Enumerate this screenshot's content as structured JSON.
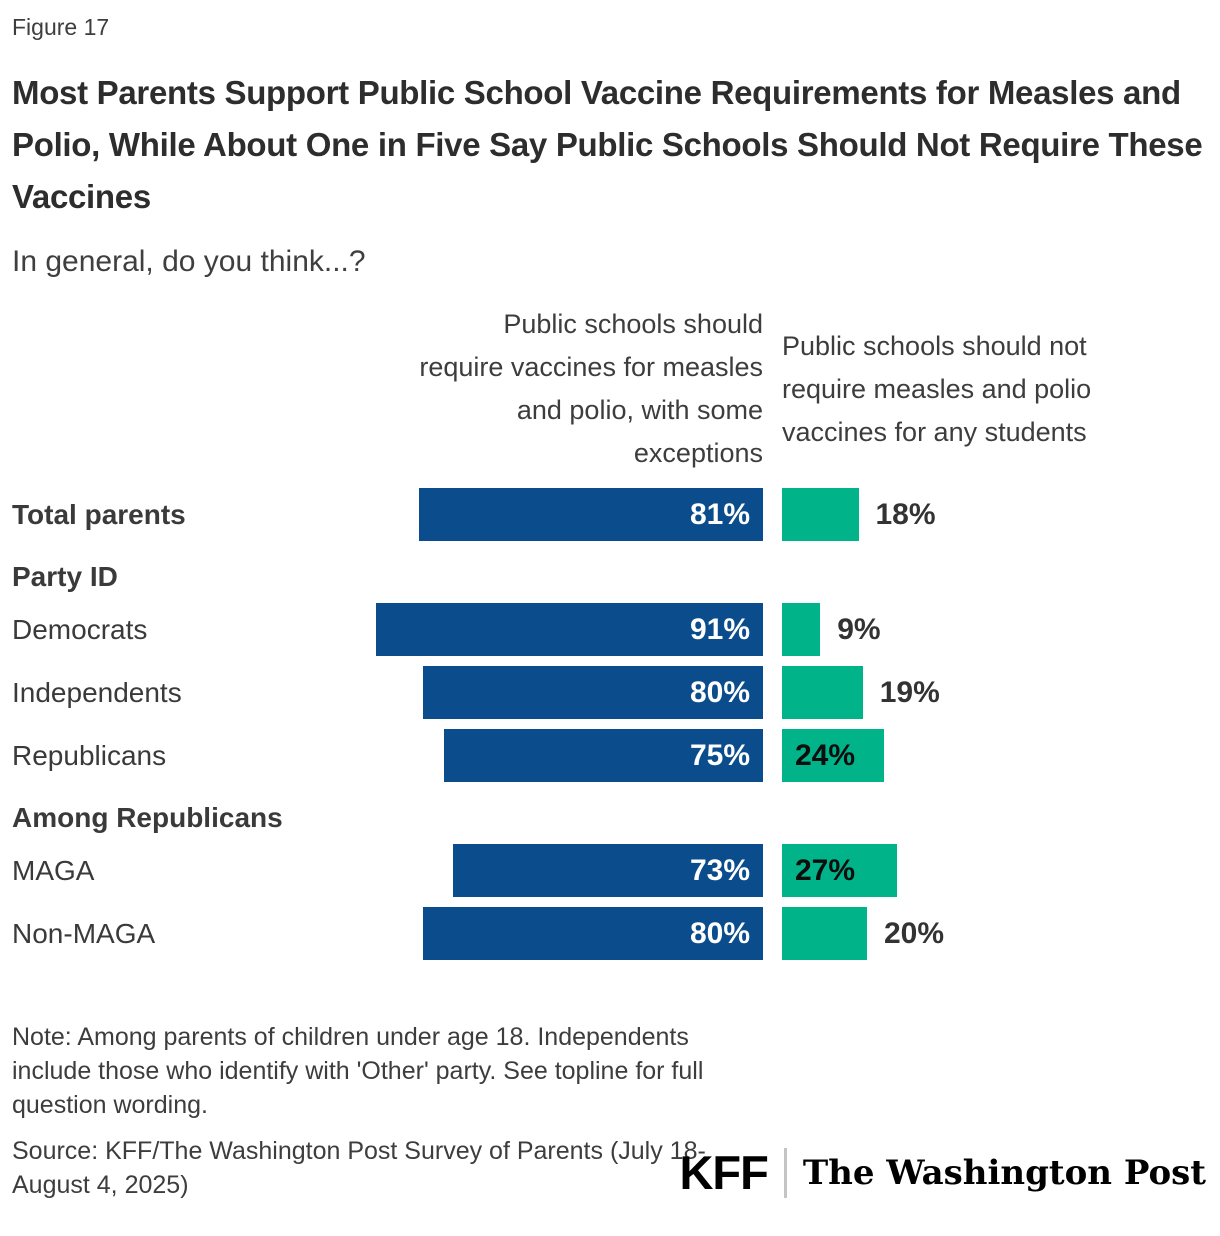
{
  "figure_label": "Figure 17",
  "title": "Most Parents Support Public School Vaccine Requirements for Measles and Polio, While About One in Five Say Public Schools Should Not Require These Vaccines",
  "subtitle": "In general, do you think...?",
  "note": "Note: Among parents of children under age 18. Independents include those who identify with 'Other' party. See topline for full question wording.",
  "source": "Source: KFF/The Washington Post Survey of Parents (July 18-August 4, 2025)",
  "logos": {
    "kff": "KFF",
    "washington_post": "The Washington Post"
  },
  "colors": {
    "blue": "#0B4D8C",
    "green": "#00B388",
    "title_text": "#2D2D2D",
    "body_text": "#3D3D3D"
  },
  "chart_data": {
    "type": "bar",
    "orientation": "horizontal",
    "value_unit": "%",
    "xlim": [
      0,
      100
    ],
    "grid": false,
    "legend_position": "column-headers-top",
    "column_headers": {
      "left_lines": [
        "Public schools should",
        "require vaccines for measles",
        "and polio, with some",
        "exceptions"
      ],
      "right_lines": [
        "Public schools should not",
        "require measles and polio",
        "vaccines for any students"
      ]
    },
    "series": [
      {
        "name": "Public schools should require vaccines for measles and polio, with some exceptions",
        "color": "#0B4D8C"
      },
      {
        "name": "Public schools should not require measles and polio vaccines for any students",
        "color": "#00B388"
      }
    ],
    "categories": [
      "Total parents",
      "Democrats",
      "Independents",
      "Republicans",
      "MAGA",
      "Non-MAGA"
    ],
    "rows": [
      {
        "type": "data",
        "label": "Total parents",
        "bold": true,
        "left_value": 81,
        "right_value": 18,
        "right_label_inside": false
      },
      {
        "type": "section",
        "label": "Party ID"
      },
      {
        "type": "data",
        "label": "Democrats",
        "bold": false,
        "left_value": 91,
        "right_value": 9,
        "right_label_inside": false
      },
      {
        "type": "data",
        "label": "Independents",
        "bold": false,
        "left_value": 80,
        "right_value": 19,
        "right_label_inside": false
      },
      {
        "type": "data",
        "label": "Republicans",
        "bold": false,
        "left_value": 75,
        "right_value": 24,
        "right_label_inside": true
      },
      {
        "type": "section",
        "label": "Among Republicans"
      },
      {
        "type": "data",
        "label": "MAGA",
        "bold": false,
        "left_value": 73,
        "right_value": 27,
        "right_label_inside": true
      },
      {
        "type": "data",
        "label": "Non-MAGA",
        "bold": false,
        "left_value": 80,
        "right_value": 20,
        "right_label_inside": false
      }
    ]
  }
}
